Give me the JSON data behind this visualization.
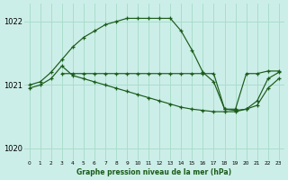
{
  "title": "Graphe pression niveau de la mer (hPa)",
  "background_color": "#cceee8",
  "grid_color": "#aaddcc",
  "line_color": "#1a5c1a",
  "xlim": [
    -0.5,
    23.5
  ],
  "ylim": [
    1019.82,
    1022.28
  ],
  "yticks": [
    1020,
    1021,
    1022
  ],
  "xticks": [
    0,
    1,
    2,
    3,
    4,
    5,
    6,
    7,
    8,
    9,
    10,
    11,
    12,
    13,
    14,
    15,
    16,
    17,
    18,
    19,
    20,
    21,
    22,
    23
  ],
  "curveA": {
    "x": [
      0,
      1,
      2,
      3,
      4,
      5,
      6,
      7,
      8,
      9,
      10,
      11,
      12,
      13,
      14,
      15,
      16,
      17,
      18,
      19,
      20,
      21,
      22,
      23
    ],
    "y": [
      1021.0,
      1021.05,
      1021.2,
      1021.4,
      1021.6,
      1021.75,
      1021.85,
      1021.95,
      1022.0,
      1022.05,
      1022.05,
      1022.05,
      1022.05,
      1022.05,
      1021.85,
      1021.55,
      1021.2,
      1021.05,
      1020.62,
      1020.6,
      1020.62,
      1020.75,
      1021.1,
      1021.2
    ]
  },
  "curveB": {
    "x": [
      3,
      4,
      5,
      6,
      7,
      8,
      9,
      10,
      11,
      12,
      13,
      14,
      15,
      16,
      17,
      18,
      19,
      20,
      21,
      22,
      23
    ],
    "y": [
      1021.18,
      1021.18,
      1021.18,
      1021.18,
      1021.18,
      1021.18,
      1021.18,
      1021.18,
      1021.18,
      1021.18,
      1021.18,
      1021.18,
      1021.18,
      1021.18,
      1021.18,
      1020.62,
      1020.62,
      1021.18,
      1021.18,
      1021.22,
      1021.22
    ]
  },
  "curveC": {
    "x": [
      0,
      1,
      2,
      3,
      4,
      5,
      6,
      7,
      8,
      9,
      10,
      11,
      12,
      13,
      14,
      15,
      16,
      17,
      18,
      19,
      20,
      21,
      22,
      23
    ],
    "y": [
      1020.95,
      1021.0,
      1021.1,
      1021.3,
      1021.15,
      1021.1,
      1021.05,
      1021.0,
      1020.95,
      1020.9,
      1020.85,
      1020.8,
      1020.75,
      1020.7,
      1020.65,
      1020.62,
      1020.6,
      1020.58,
      1020.58,
      1020.58,
      1020.62,
      1020.68,
      1020.95,
      1021.1
    ]
  }
}
